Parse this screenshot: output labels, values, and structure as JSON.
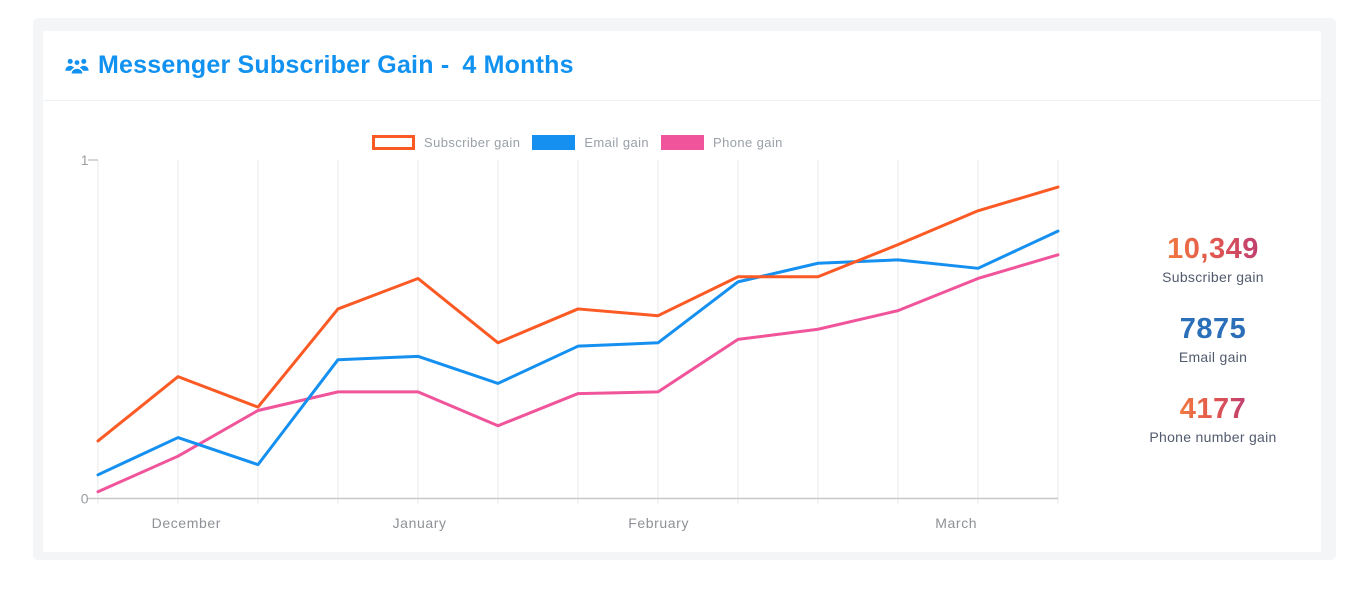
{
  "header": {
    "title_prefix": "Messenger Subscriber Gain -",
    "title_period": "4 Months",
    "icon": "users-icon",
    "title_color": "#1292f0"
  },
  "legend": [
    {
      "label": "Subscriber gain",
      "swatch": "outline",
      "color": "#fb5a25"
    },
    {
      "label": "Email gain",
      "swatch": "solid",
      "color": "#1590f0"
    },
    {
      "label": "Phone gain",
      "swatch": "solid",
      "color": "#f0549b"
    }
  ],
  "stats": [
    {
      "value": "10,349",
      "label": "Subscriber gain",
      "style": "gradient"
    },
    {
      "value": "7875",
      "label": "Email gain",
      "style": "blue"
    },
    {
      "value": "4177",
      "label": "Phone number gain",
      "style": "gradient"
    }
  ],
  "chart_data": {
    "type": "line",
    "title": "Messenger Subscriber Gain - 4 Months",
    "n_points": 13,
    "ylim": [
      0,
      1
    ],
    "y_ticks": [
      {
        "label": "1",
        "value": 1
      },
      {
        "label": "0",
        "value": 0
      }
    ],
    "x_tick_labels": [
      {
        "label": "December",
        "pos": 0.092
      },
      {
        "label": "January",
        "pos": 0.335
      },
      {
        "label": "February",
        "pos": 0.584
      },
      {
        "label": "March",
        "pos": 0.894
      }
    ],
    "grid": "vertical-only",
    "legend_position": "top-center",
    "series": [
      {
        "name": "Subscriber gain",
        "color": "#fb5a25",
        "values": [
          0.17,
          0.36,
          0.27,
          0.56,
          0.65,
          0.46,
          0.56,
          0.54,
          0.655,
          0.655,
          0.75,
          0.85,
          0.92
        ]
      },
      {
        "name": "Email gain",
        "color": "#1590f0",
        "values": [
          0.07,
          0.18,
          0.1,
          0.41,
          0.42,
          0.34,
          0.45,
          0.46,
          0.64,
          0.695,
          0.705,
          0.68,
          0.79
        ]
      },
      {
        "name": "Phone gain",
        "color": "#f0549b",
        "values": [
          0.02,
          0.125,
          0.26,
          0.315,
          0.315,
          0.215,
          0.31,
          0.315,
          0.47,
          0.5,
          0.555,
          0.65,
          0.72
        ]
      }
    ]
  },
  "axis_colors": {
    "grid": "#e9eaeb",
    "baseline": "#c6c8ca",
    "tick_text": "#9b9da1",
    "month_text": "#8e9196"
  }
}
